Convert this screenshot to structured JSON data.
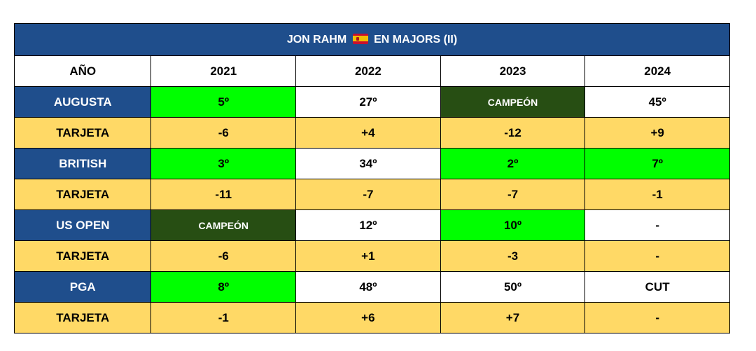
{
  "title": {
    "before": "JON RAHM",
    "flag_icon": "spain-flag",
    "after": "EN MAJORS (II)"
  },
  "header": [
    "AÑO",
    "2021",
    "2022",
    "2023",
    "2024"
  ],
  "colors": {
    "navy": "#1f4e8c",
    "yellow": "#ffd966",
    "green": "#00ff00",
    "dark_green": "#274e13",
    "white": "#ffffff"
  },
  "rows": [
    {
      "label": "AUGUSTA",
      "type": "venue",
      "cells": [
        {
          "v": "5º",
          "c": "green"
        },
        {
          "v": "27º",
          "c": "white"
        },
        {
          "v": "CAMPEÓN",
          "c": "champ"
        },
        {
          "v": "45º",
          "c": "white"
        }
      ]
    },
    {
      "label": "TARJETA",
      "type": "score",
      "cells": [
        {
          "v": "-6",
          "c": "score"
        },
        {
          "v": "+4",
          "c": "score"
        },
        {
          "v": "-12",
          "c": "score"
        },
        {
          "v": "+9",
          "c": "score"
        }
      ]
    },
    {
      "label": "BRITISH",
      "type": "venue",
      "cells": [
        {
          "v": "3º",
          "c": "green"
        },
        {
          "v": "34º",
          "c": "white"
        },
        {
          "v": "2º",
          "c": "green"
        },
        {
          "v": "7º",
          "c": "green"
        }
      ]
    },
    {
      "label": "TARJETA",
      "type": "score",
      "cells": [
        {
          "v": "-11",
          "c": "score"
        },
        {
          "v": "-7",
          "c": "score"
        },
        {
          "v": "-7",
          "c": "score"
        },
        {
          "v": "-1",
          "c": "score"
        }
      ]
    },
    {
      "label": "US OPEN",
      "type": "venue",
      "cells": [
        {
          "v": "CAMPEÓN",
          "c": "champ"
        },
        {
          "v": "12º",
          "c": "white"
        },
        {
          "v": "10º",
          "c": "green"
        },
        {
          "v": "-",
          "c": "white"
        }
      ]
    },
    {
      "label": "TARJETA",
      "type": "score",
      "cells": [
        {
          "v": "-6",
          "c": "score"
        },
        {
          "v": "+1",
          "c": "score"
        },
        {
          "v": "-3",
          "c": "score"
        },
        {
          "v": "-",
          "c": "score"
        }
      ]
    },
    {
      "label": "PGA",
      "type": "venue",
      "cells": [
        {
          "v": "8º",
          "c": "green"
        },
        {
          "v": "48º",
          "c": "white"
        },
        {
          "v": "50º",
          "c": "white"
        },
        {
          "v": "CUT",
          "c": "white"
        }
      ]
    },
    {
      "label": "TARJETA",
      "type": "score",
      "cells": [
        {
          "v": "-1",
          "c": "score"
        },
        {
          "v": "+6",
          "c": "score"
        },
        {
          "v": "+7",
          "c": "score"
        },
        {
          "v": "-",
          "c": "score"
        }
      ]
    }
  ]
}
